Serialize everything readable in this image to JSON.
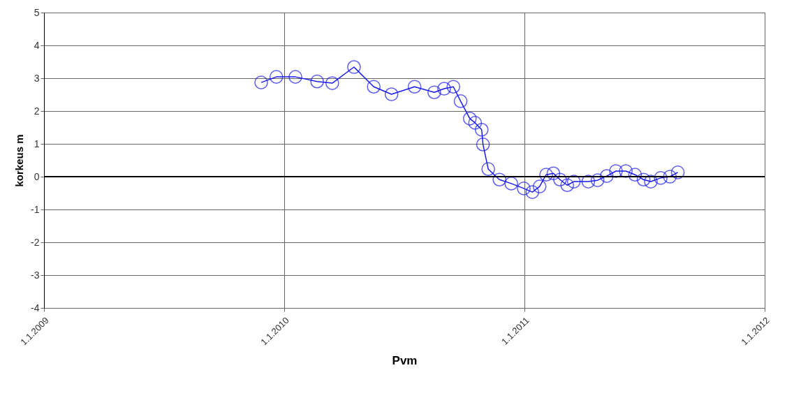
{
  "chart_data": {
    "type": "line",
    "xlabel": "Pvm",
    "ylabel": "korkeus m",
    "x": [
      "2009-11-27",
      "2009-12-20",
      "2010-01-18",
      "2010-02-20",
      "2010-03-15",
      "2010-04-17",
      "2010-05-17",
      "2010-06-13",
      "2010-07-18",
      "2010-08-17",
      "2010-09-01",
      "2010-09-15",
      "2010-09-26",
      "2010-10-10",
      "2010-10-18",
      "2010-10-28",
      "2010-10-30",
      "2010-11-07",
      "2010-11-24",
      "2010-12-12",
      "2010-12-31",
      "2011-01-13",
      "2011-01-24",
      "2011-02-03",
      "2011-02-14",
      "2011-02-24",
      "2011-03-07",
      "2011-03-17",
      "2011-04-08",
      "2011-04-22",
      "2011-05-06",
      "2011-05-20",
      "2011-06-04",
      "2011-06-18",
      "2011-07-01",
      "2011-07-12",
      "2011-07-27",
      "2011-08-10",
      "2011-08-22"
    ],
    "series": [
      {
        "color": "#1a1aee",
        "values": [
          2.87,
          3.04,
          3.04,
          2.9,
          2.85,
          3.34,
          2.74,
          2.51,
          2.74,
          2.57,
          2.68,
          2.74,
          2.3,
          1.77,
          1.64,
          1.43,
          0.98,
          0.23,
          -0.09,
          -0.21,
          -0.36,
          -0.47,
          -0.3,
          0.06,
          0.1,
          -0.09,
          -0.26,
          -0.15,
          -0.15,
          -0.11,
          0.02,
          0.17,
          0.17,
          0.06,
          -0.09,
          -0.15,
          -0.04,
          0,
          0.13
        ]
      }
    ],
    "xlim": [
      "2009-01-01",
      "2012-01-01"
    ],
    "xticks": [
      {
        "value": "2009-01-01",
        "label": "1.1.2009"
      },
      {
        "value": "2010-01-01",
        "label": "1.1.2010"
      },
      {
        "value": "2011-01-01",
        "label": "1.1.2011"
      },
      {
        "value": "2012-01-01",
        "label": "1.1.2012"
      }
    ],
    "ylim": [
      -4,
      5
    ],
    "yticks": [
      -4,
      -3,
      -2,
      -1,
      0,
      1,
      2,
      3,
      4,
      5
    ],
    "ref_lines": [
      {
        "axis": "y",
        "value": 0,
        "color": "#000000"
      }
    ],
    "grid": true,
    "marker": "circle",
    "line_style": "solid"
  }
}
